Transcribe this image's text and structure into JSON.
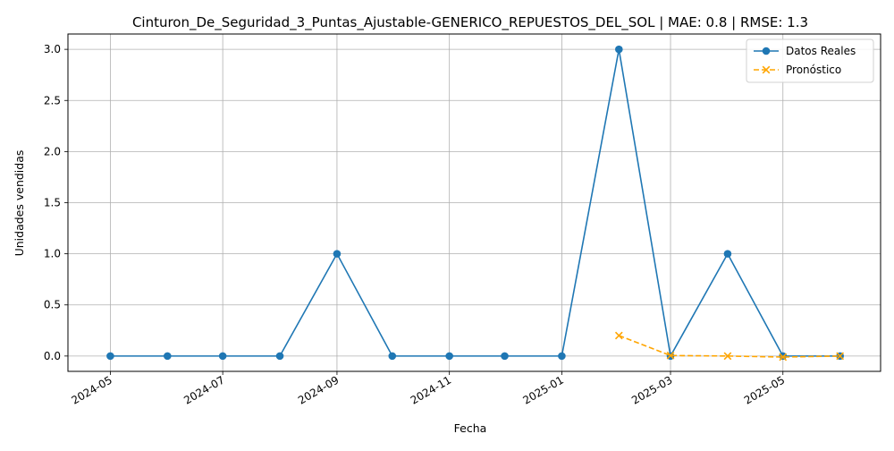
{
  "chart_data": {
    "type": "line",
    "title": "Cinturon_De_Seguridad_3_Puntas_Ajustable-GENERICO_REPUESTOS_DEL_SOL | MAE: 0.8 | RMSE: 1.3",
    "xlabel": "Fecha",
    "ylabel": "Unidades vendidas",
    "xlim": [
      "2024-04-08",
      "2025-06-23"
    ],
    "ylim": [
      -0.15,
      3.15
    ],
    "grid": true,
    "legend_position": "top-right",
    "x_ticks": [
      "2024-05",
      "2024-07",
      "2024-09",
      "2024-11",
      "2025-01",
      "2025-03",
      "2025-05"
    ],
    "y_ticks": [
      "0.0",
      "0.5",
      "1.0",
      "1.5",
      "2.0",
      "2.5",
      "3.0"
    ],
    "series": [
      {
        "name": "Datos Reales",
        "color": "#1f77b4",
        "line_style": "solid",
        "marker": "circle",
        "x": [
          "2024-05-01",
          "2024-06-01",
          "2024-07-01",
          "2024-08-01",
          "2024-09-01",
          "2024-10-01",
          "2024-11-01",
          "2024-12-01",
          "2025-01-01",
          "2025-02-01",
          "2025-03-01",
          "2025-04-01",
          "2025-05-01",
          "2025-06-01"
        ],
        "values": [
          0,
          0,
          0,
          0,
          1,
          0,
          0,
          0,
          0,
          3,
          0,
          1,
          0,
          0
        ]
      },
      {
        "name": "Pronóstico",
        "color": "#ffa500",
        "line_style": "dashed",
        "marker": "x",
        "x": [
          "2025-02-01",
          "2025-03-01",
          "2025-04-01",
          "2025-05-01",
          "2025-06-01"
        ],
        "values": [
          0.2,
          0.005,
          0.0,
          -0.01,
          0.0
        ]
      }
    ]
  }
}
